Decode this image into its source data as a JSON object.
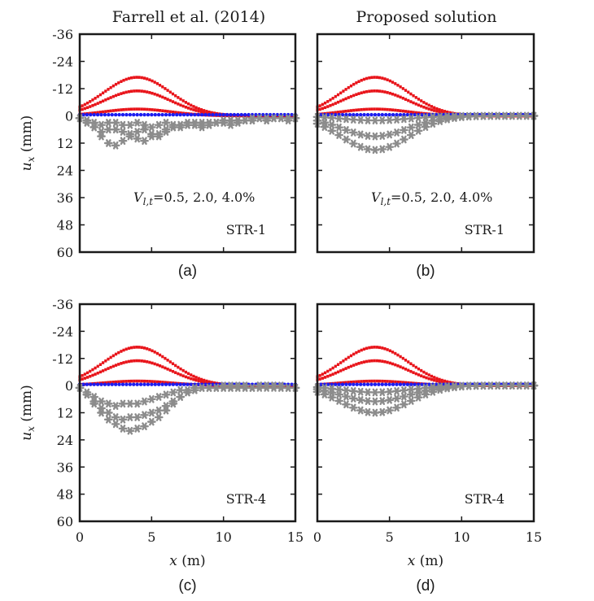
{
  "column_titles": [
    "Farrell et al. (2014)",
    "Proposed solution"
  ],
  "colors": {
    "red": "#e8141a",
    "blue": "#1c1cf0",
    "gray": "#8c8c8c",
    "axis": "#1a1a1a"
  },
  "axes": {
    "ylabel_base": "u",
    "ylabel_sub": "x",
    "ylabel_unit": " (mm)",
    "xlabel_base": "x",
    "xlabel_unit": " (m)",
    "yticks": [
      "-36",
      "-24",
      "-12",
      "0",
      "12",
      "24",
      "36",
      "48",
      "60"
    ],
    "xticks": [
      "0",
      "5",
      "10",
      "15"
    ]
  },
  "chart_data": [
    {
      "panel": "(a)",
      "type": "scatter",
      "y_inverted": true,
      "xlim": [
        0,
        15
      ],
      "ylim": [
        -36,
        60
      ],
      "annotation_base": "V",
      "annotation_sub": "l,t",
      "annotation_rest": "=0.5, 2.0, 4.0%",
      "label": "STR-1",
      "series": [
        {
          "color": "red",
          "peak_x": 4.0,
          "peaks": [
            -3,
            -11,
            -17
          ]
        },
        {
          "color": "blue",
          "peak_x": 3.5,
          "peaks": [
            -0.5,
            -0.5,
            -0.5
          ]
        },
        {
          "color": "gray",
          "x": [
            0,
            0.5,
            1,
            1.5,
            2,
            2.5,
            3,
            3.5,
            4,
            4.5,
            5,
            5.5,
            6,
            6.5,
            7,
            7.5,
            8,
            8.5,
            9,
            9.5,
            10,
            10.5,
            11,
            11.5,
            12,
            12.5,
            13,
            13.5,
            14,
            14.5,
            15
          ],
          "curves": [
            [
              1,
              2,
              3,
              4,
              3,
              3,
              4,
              4,
              3,
              4,
              5,
              4,
              3,
              4,
              5,
              4,
              3,
              3,
              4,
              3,
              2,
              2,
              3,
              2,
              2,
              1,
              2,
              1,
              1,
              2,
              1
            ],
            [
              1,
              3,
              5,
              7,
              6,
              6,
              7,
              8,
              7,
              6,
              8,
              9,
              7,
              5,
              4,
              4,
              4,
              5,
              4,
              3,
              3,
              4,
              3,
              2,
              2,
              1,
              2,
              1,
              1,
              1,
              1
            ],
            [
              1,
              3,
              5,
              9,
              12,
              13,
              11,
              9,
              10,
              11,
              9,
              8,
              6,
              5,
              4,
              3,
              4,
              4,
              3,
              3,
              3,
              2,
              2,
              2,
              1,
              1,
              1,
              1,
              1,
              1,
              1
            ]
          ]
        }
      ]
    },
    {
      "panel": "(b)",
      "type": "scatter",
      "y_inverted": true,
      "xlim": [
        0,
        15
      ],
      "ylim": [
        -36,
        60
      ],
      "annotation_base": "V",
      "annotation_sub": "l,t",
      "annotation_rest": "=0.5, 2.0, 4.0%",
      "label": "STR-1",
      "series": [
        {
          "color": "red",
          "peak_x": 4.0,
          "peaks": [
            -3,
            -11,
            -17
          ]
        },
        {
          "color": "blue",
          "peak_x": 4.0,
          "peaks": [
            -0.5,
            -0.5,
            -0.5
          ]
        },
        {
          "color": "gray",
          "peak_x": 4.0,
          "peaks": [
            2,
            9,
            15
          ]
        }
      ]
    },
    {
      "panel": "(c)",
      "type": "scatter",
      "y_inverted": true,
      "xlim": [
        0,
        15
      ],
      "ylim": [
        -36,
        60
      ],
      "label": "STR-4",
      "series": [
        {
          "color": "red",
          "peak_x": 4.0,
          "peaks": [
            -2,
            -11,
            -17
          ]
        },
        {
          "color": "blue",
          "peak_x": 3.5,
          "peaks": [
            -0.5,
            -0.5,
            -0.5
          ]
        },
        {
          "color": "gray",
          "x": [
            0,
            0.5,
            1,
            1.5,
            2,
            2.5,
            3,
            3.5,
            4,
            4.5,
            5,
            5.5,
            6,
            6.5,
            7,
            7.5,
            8,
            8.5,
            9,
            9.5,
            10,
            10.5,
            11,
            11.5,
            12,
            12.5,
            13,
            13.5,
            14,
            14.5,
            15
          ],
          "curves": [
            [
              1,
              3,
              5,
              7,
              8,
              9,
              8,
              8,
              8,
              7,
              6,
              5,
              4,
              3,
              2,
              2,
              1,
              1,
              1,
              1,
              0,
              1,
              1,
              0,
              1,
              0,
              1,
              0,
              0,
              1,
              1
            ],
            [
              1,
              4,
              7,
              10,
              12,
              14,
              15,
              14,
              14,
              13,
              12,
              11,
              9,
              7,
              5,
              3,
              2,
              1,
              1,
              1,
              1,
              1,
              0,
              1,
              1,
              1,
              0,
              0,
              1,
              1,
              1
            ],
            [
              1,
              4,
              8,
              12,
              15,
              17,
              19,
              20,
              19,
              18,
              16,
              14,
              11,
              8,
              5,
              3,
              2,
              1,
              1,
              1,
              1,
              0,
              1,
              1,
              1,
              0,
              0,
              1,
              1,
              1,
              1
            ]
          ]
        }
      ]
    },
    {
      "panel": "(d)",
      "type": "scatter",
      "y_inverted": true,
      "xlim": [
        0,
        15
      ],
      "ylim": [
        -36,
        60
      ],
      "label": "STR-4",
      "series": [
        {
          "color": "red",
          "peak_x": 4.0,
          "peaks": [
            -2,
            -11,
            -17
          ]
        },
        {
          "color": "blue",
          "peak_x": 4.0,
          "peaks": [
            -0.5,
            -0.5,
            -0.5
          ]
        },
        {
          "color": "gray",
          "peak_x": 4.0,
          "peaks": [
            3,
            7,
            12
          ]
        }
      ]
    }
  ]
}
